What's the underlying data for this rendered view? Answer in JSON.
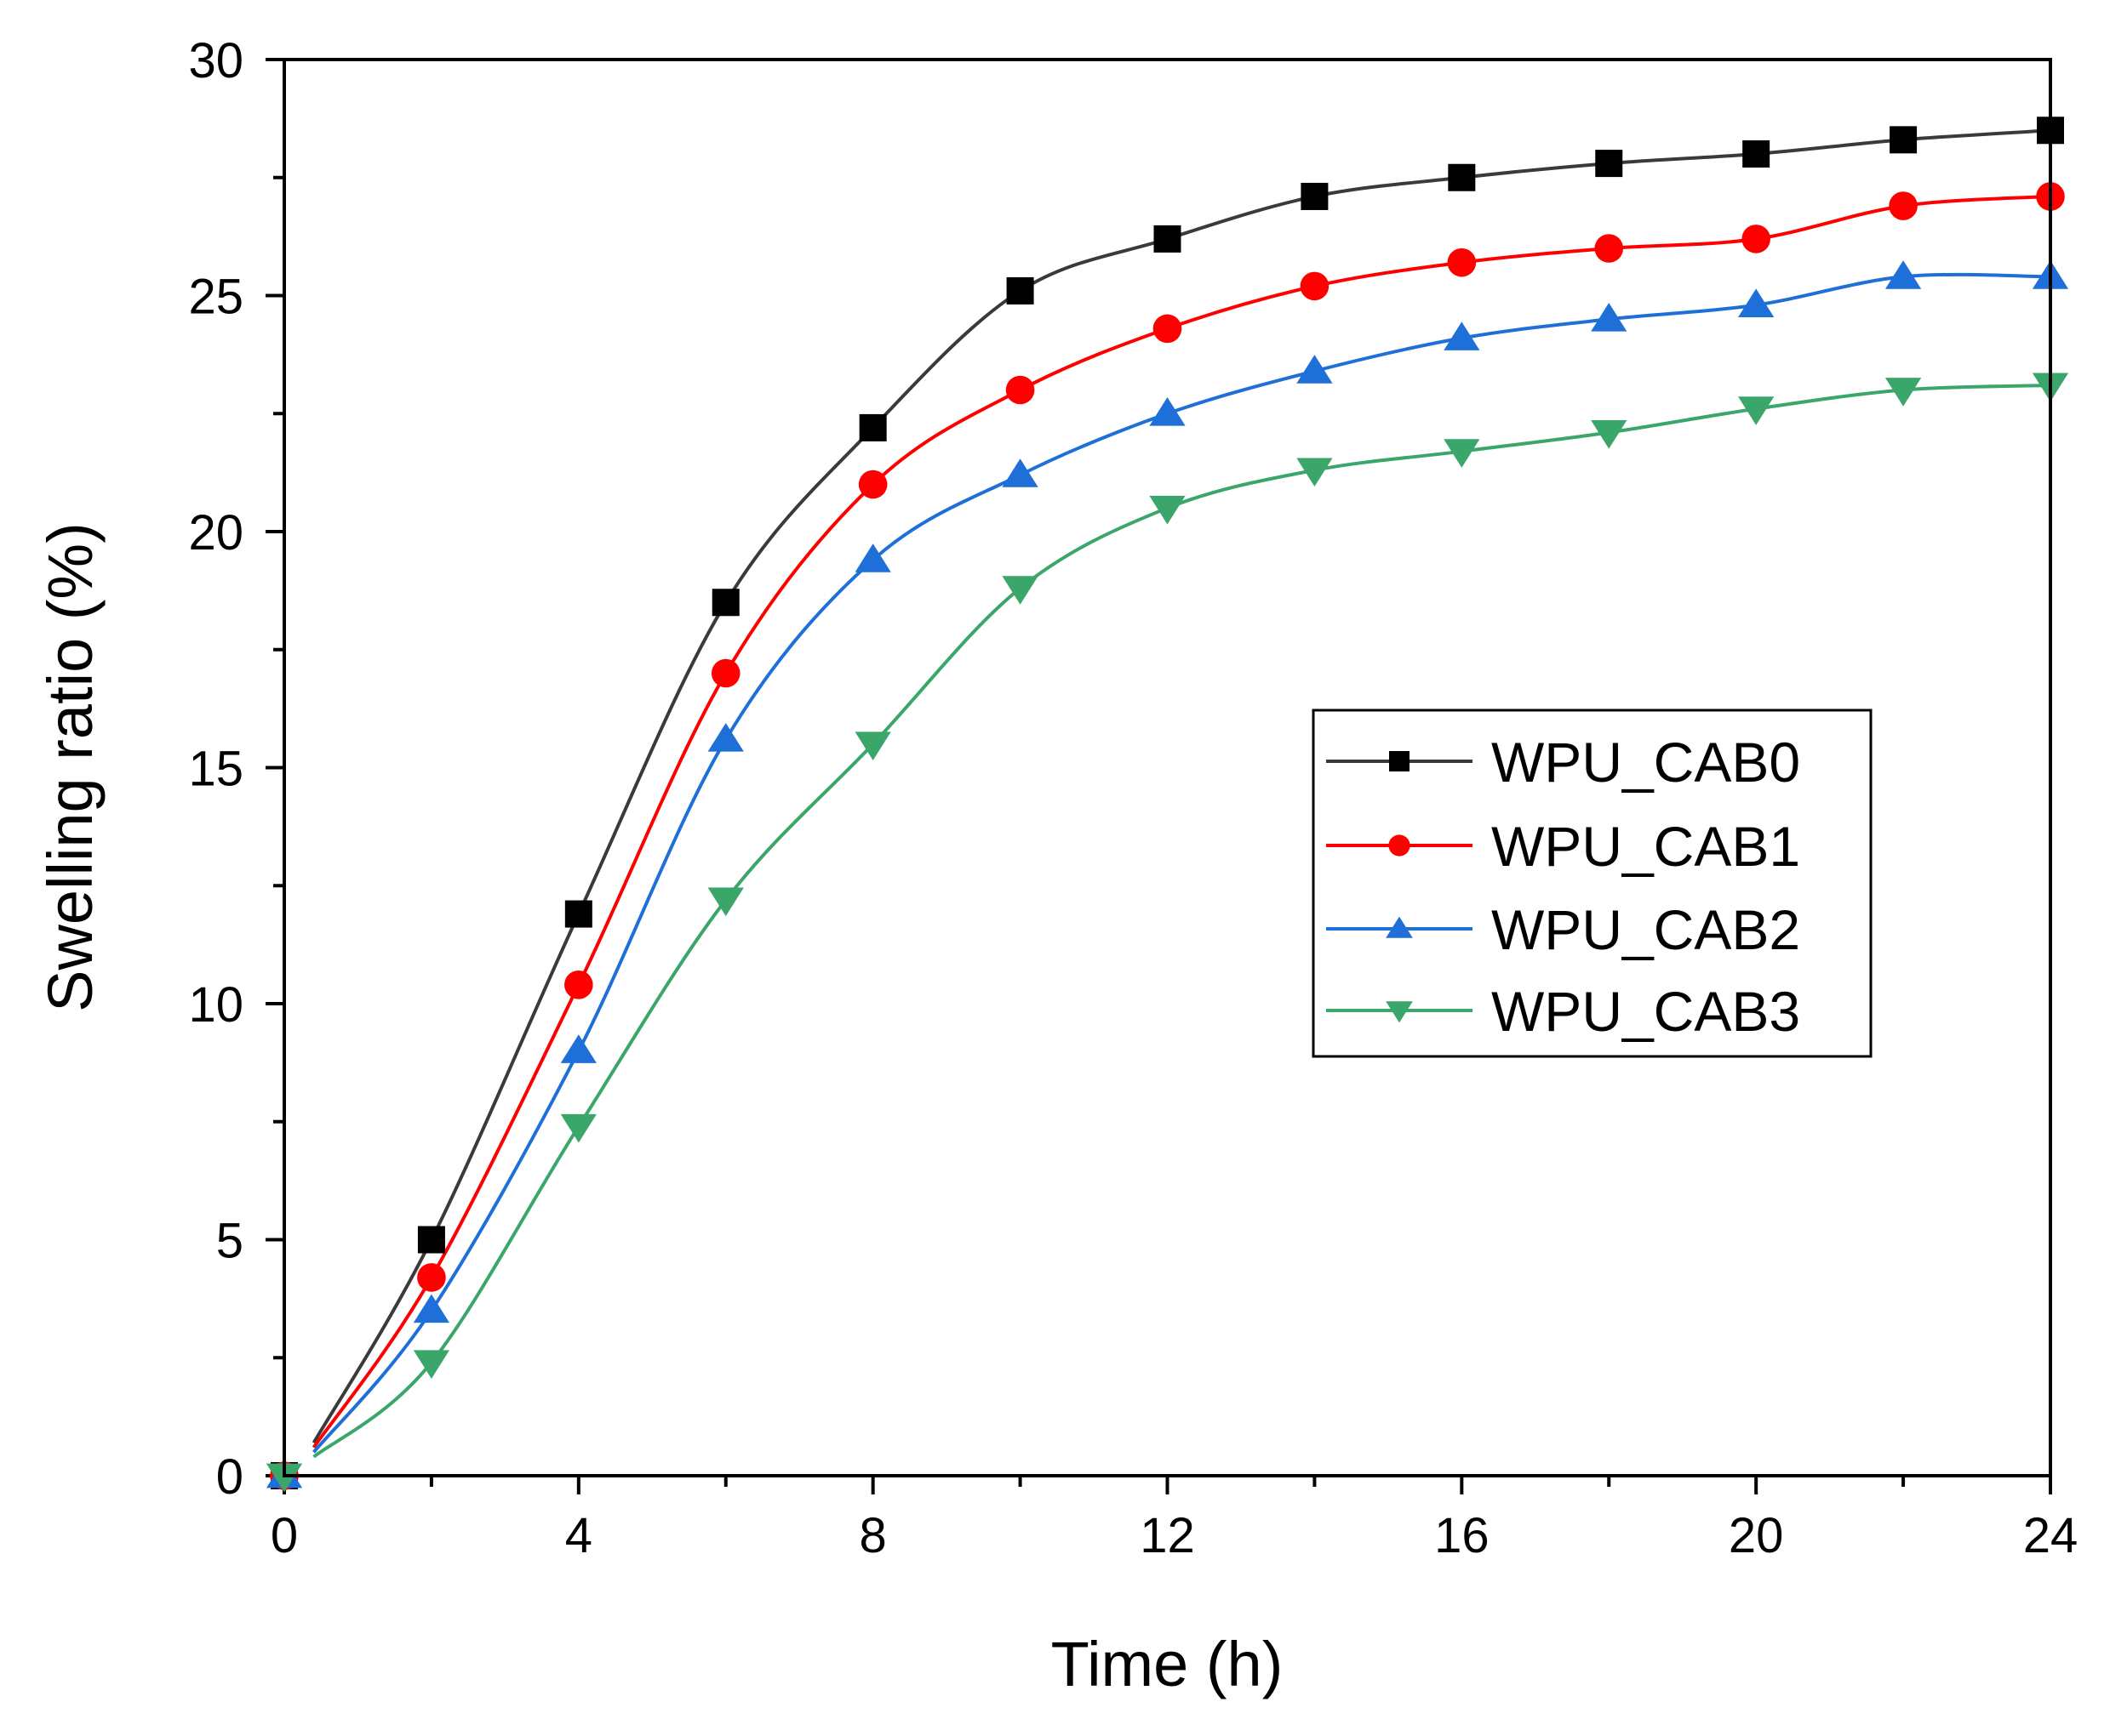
{
  "chart_data": {
    "type": "line",
    "title": "",
    "xlabel": "Time (h)",
    "ylabel": "Swelling ratio (%)",
    "xlim": [
      0,
      24
    ],
    "ylim": [
      0,
      30
    ],
    "xticks": [
      0,
      4,
      8,
      12,
      16,
      20,
      24
    ],
    "yticks": [
      0,
      5,
      10,
      15,
      20,
      25,
      30
    ],
    "grid": false,
    "legend_position": "center-right",
    "x": [
      0,
      2,
      4,
      6,
      8,
      10,
      12,
      14,
      16,
      18,
      20,
      22,
      24
    ],
    "series": [
      {
        "name": "WPU_CAB0",
        "color": "#000000",
        "line_color": "#3a3a3a",
        "marker": "square",
        "values": [
          0,
          5.0,
          11.9,
          18.5,
          22.2,
          25.1,
          26.2,
          27.1,
          27.5,
          27.8,
          28.0,
          28.3,
          28.5
        ]
      },
      {
        "name": "WPU_CAB1",
        "color": "#ff0000",
        "line_color": "#ff0000",
        "marker": "circle",
        "values": [
          0,
          4.2,
          10.4,
          17.0,
          21.0,
          23.0,
          24.3,
          25.2,
          25.7,
          26.0,
          26.2,
          26.9,
          27.1
        ]
      },
      {
        "name": "WPU_CAB2",
        "color": "#1f6fd8",
        "line_color": "#1f6fd8",
        "marker": "triangle-up",
        "values": [
          0,
          3.5,
          9.0,
          15.6,
          19.4,
          21.2,
          22.5,
          23.4,
          24.1,
          24.5,
          24.8,
          25.4,
          25.4
        ]
      },
      {
        "name": "WPU_CAB3",
        "color": "#3aa66a",
        "line_color": "#3aa66a",
        "marker": "triangle-down",
        "values": [
          0,
          2.4,
          7.4,
          12.2,
          15.5,
          18.8,
          20.5,
          21.3,
          21.7,
          22.1,
          22.6,
          23.0,
          23.1
        ]
      }
    ]
  }
}
